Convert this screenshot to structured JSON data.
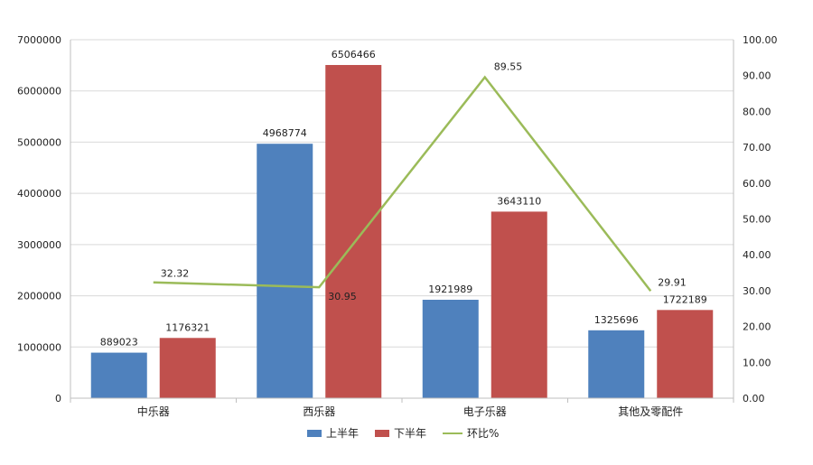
{
  "chart_data": {
    "type": "bar",
    "categories": [
      "中乐器",
      "西乐器",
      "电子乐器",
      "其他及零配件"
    ],
    "series": [
      {
        "name": "上半年",
        "type": "bar",
        "axis": "left",
        "color": "#4f81bd",
        "values": [
          889023,
          4968774,
          1921989,
          1325696
        ],
        "labels": [
          "889023",
          "4968774",
          "1921989",
          "1325696"
        ]
      },
      {
        "name": "下半年",
        "type": "bar",
        "axis": "left",
        "color": "#c0504d",
        "values": [
          1176321,
          6506466,
          3643110,
          1722189
        ],
        "labels": [
          "1176321",
          "6506466",
          "3643110",
          "1722189"
        ]
      },
      {
        "name": "环比%",
        "type": "line",
        "axis": "right",
        "color": "#9bbb59",
        "values": [
          32.32,
          30.95,
          89.55,
          29.91
        ],
        "labels": [
          "32.32",
          "30.95",
          "89.55",
          "29.91"
        ]
      }
    ],
    "ylim_left": [
      0,
      7000000
    ],
    "yticks_left": [
      "0",
      "1000000",
      "2000000",
      "3000000",
      "4000000",
      "5000000",
      "6000000",
      "7000000"
    ],
    "ylim_right": [
      0,
      100
    ],
    "yticks_right": [
      "0.00",
      "10.00",
      "20.00",
      "30.00",
      "40.00",
      "50.00",
      "60.00",
      "70.00",
      "80.00",
      "90.00",
      "100.00"
    ],
    "grid": true,
    "legend_position": "bottom"
  }
}
